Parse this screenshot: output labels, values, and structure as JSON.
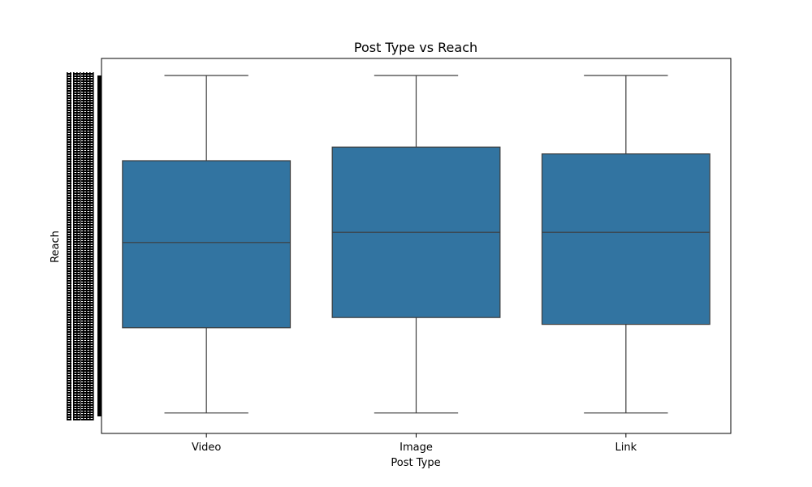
{
  "chart_data": {
    "type": "box",
    "title": "Post Type vs Reach",
    "xlabel": "Post Type",
    "ylabel": "Reach",
    "categories": [
      "Video",
      "Image",
      "Link"
    ],
    "y_scale": "relative 0-1 (y tick labels unreadable)",
    "ylim": [
      0,
      1
    ],
    "series": [
      {
        "boxes": [
          {
            "category": "Video",
            "min": 0.01,
            "q1": 0.26,
            "median": 0.51,
            "q3": 0.75,
            "max": 1.0
          },
          {
            "category": "Image",
            "min": 0.01,
            "q1": 0.29,
            "median": 0.54,
            "q3": 0.79,
            "max": 1.0
          },
          {
            "category": "Link",
            "min": 0.01,
            "q1": 0.27,
            "median": 0.54,
            "q3": 0.77,
            "max": 1.0
          }
        ]
      }
    ],
    "box_color": "#3274a1",
    "line_color": "#3d3d3d",
    "grid": false,
    "legend": "none"
  }
}
